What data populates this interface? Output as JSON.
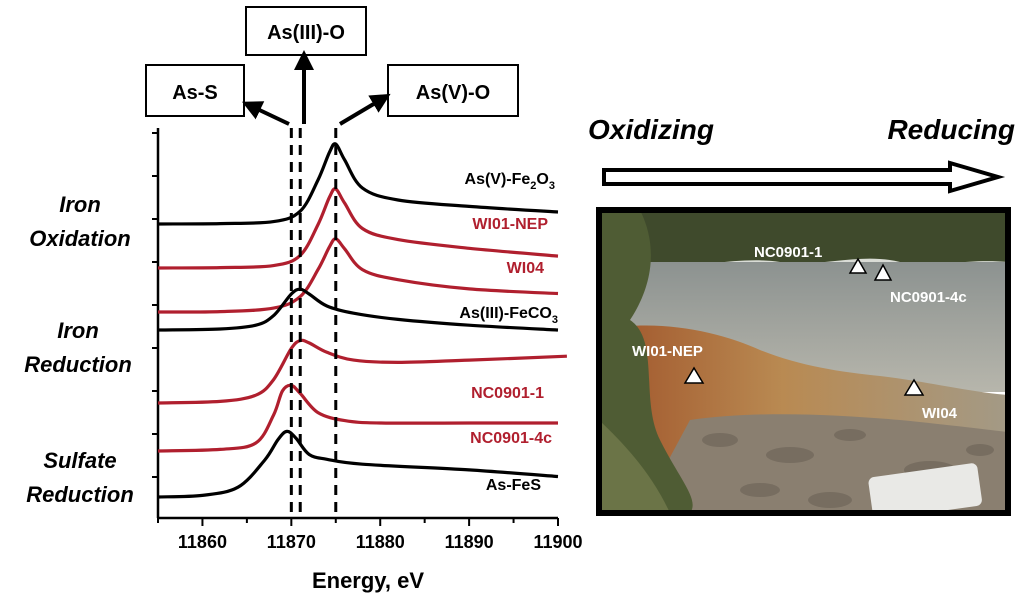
{
  "chart_data": {
    "type": "line",
    "xlabel": "Energy, eV",
    "xlim": [
      11855,
      11900
    ],
    "xticks": [
      11860,
      11870,
      11880,
      11890,
      11900
    ],
    "stacked_offset": true,
    "grid": false,
    "series": [
      {
        "name": "As(V)-Fe2O3",
        "label_main": "As(V)-Fe",
        "label_sub1": "2",
        "label_mid": "O",
        "label_sub2": "3",
        "color": "#000000",
        "x": [
          11855,
          11862,
          11868,
          11871,
          11873,
          11874.3,
          11875,
          11876,
          11878,
          11882,
          11890,
          11900
        ],
        "y": [
          0.0,
          0.005,
          0.03,
          0.16,
          0.55,
          0.9,
          1.0,
          0.8,
          0.45,
          0.3,
          0.22,
          0.15
        ]
      },
      {
        "name": "WI01-NEP",
        "color": "#b01f2e",
        "x": [
          11855,
          11862,
          11868,
          11871,
          11873,
          11874.3,
          11875,
          11876,
          11878,
          11882,
          11890,
          11900
        ],
        "y": [
          0.0,
          0.005,
          0.03,
          0.16,
          0.55,
          0.9,
          1.0,
          0.82,
          0.5,
          0.36,
          0.25,
          0.15
        ]
      },
      {
        "name": "WI04",
        "color": "#b01f2e",
        "x": [
          11855,
          11862,
          11868,
          11871,
          11873,
          11874.3,
          11875,
          11876,
          11878,
          11882,
          11890,
          11900
        ],
        "y": [
          0.0,
          0.005,
          0.05,
          0.2,
          0.55,
          0.85,
          0.95,
          0.82,
          0.55,
          0.42,
          0.3,
          0.24
        ]
      },
      {
        "name": "As(III)-FeCO3",
        "label_main": "As(III)-FeCO",
        "label_sub1": "3",
        "color": "#000000",
        "x": [
          11855,
          11862,
          11866,
          11868,
          11870,
          11871,
          11872,
          11874,
          11877,
          11882,
          11890,
          11900
        ],
        "y": [
          0.0,
          0.02,
          0.1,
          0.3,
          0.75,
          0.85,
          0.75,
          0.5,
          0.35,
          0.22,
          0.1,
          0.0
        ]
      },
      {
        "name": "NC0901-1",
        "color": "#b01f2e",
        "x": [
          11855,
          11862,
          11866,
          11868,
          11870,
          11871,
          11872,
          11874,
          11877,
          11882,
          11890,
          11901
        ],
        "y": [
          0.0,
          0.02,
          0.1,
          0.3,
          0.7,
          0.8,
          0.77,
          0.65,
          0.55,
          0.52,
          0.55,
          0.6
        ]
      },
      {
        "name": "NC0901-4c",
        "color": "#b01f2e",
        "x": [
          11855,
          11862,
          11866,
          11868,
          11869,
          11870,
          11871,
          11873,
          11876,
          11880,
          11890,
          11900
        ],
        "y": [
          0.0,
          0.02,
          0.1,
          0.45,
          0.75,
          0.82,
          0.72,
          0.48,
          0.38,
          0.35,
          0.35,
          0.35
        ]
      },
      {
        "name": "As-FeS",
        "color": "#000000",
        "x": [
          11855,
          11860,
          11864,
          11867,
          11868.5,
          11869.5,
          11870.5,
          11872,
          11874,
          11878,
          11890,
          11900
        ],
        "y": [
          0.0,
          0.02,
          0.12,
          0.45,
          0.7,
          0.8,
          0.72,
          0.52,
          0.46,
          0.4,
          0.33,
          0.25
        ]
      }
    ],
    "reference_lines": [
      {
        "x": 11870,
        "style": "dashed",
        "label": "As-S"
      },
      {
        "x": 11871,
        "style": "dashed",
        "label": "As(III)-O"
      },
      {
        "x": 11875,
        "style": "dashed",
        "label": "As(V)-O"
      }
    ],
    "group_labels": [
      {
        "line1": "Iron",
        "line2": "Oxidation"
      },
      {
        "line1": "Iron",
        "line2": "Reduction"
      },
      {
        "line1": "Sulfate",
        "line2": "Reduction"
      }
    ]
  },
  "gradient": {
    "left_label": "Oxidizing",
    "right_label": "Reducing"
  },
  "photo": {
    "markers": [
      {
        "label": "NC0901-1"
      },
      {
        "label": "NC0901-4c"
      },
      {
        "label": "WI01-NEP"
      },
      {
        "label": "WI04"
      }
    ]
  }
}
